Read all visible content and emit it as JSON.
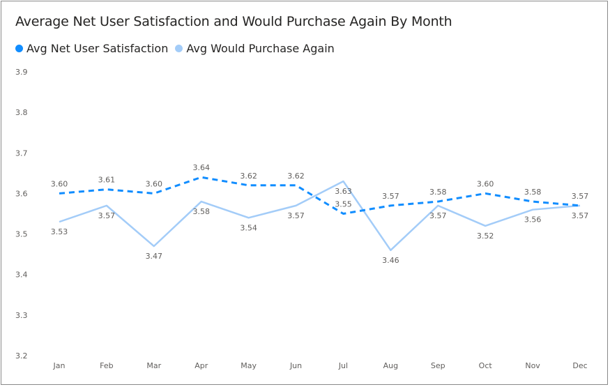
{
  "chart_data": {
    "type": "line",
    "title": "Average Net User Satisfaction and Would Purchase Again By Month",
    "categories": [
      "Jan",
      "Feb",
      "Mar",
      "Apr",
      "May",
      "Jun",
      "Jul",
      "Aug",
      "Sep",
      "Oct",
      "Nov",
      "Dec"
    ],
    "series": [
      {
        "name": "Avg Net User Satisfaction",
        "color": "#118DFF",
        "style": "dashed",
        "values": [
          3.6,
          3.61,
          3.6,
          3.64,
          3.62,
          3.62,
          3.55,
          3.57,
          3.58,
          3.6,
          3.58,
          3.57
        ]
      },
      {
        "name": "Avg Would Purchase Again",
        "color": "#A3CCF8",
        "style": "solid",
        "values": [
          3.53,
          3.57,
          3.47,
          3.58,
          3.54,
          3.57,
          3.63,
          3.46,
          3.57,
          3.52,
          3.56,
          3.57
        ]
      }
    ],
    "ylim": [
      3.2,
      3.9
    ],
    "yticks": [
      "3.2",
      "3.3",
      "3.4",
      "3.5",
      "3.6",
      "3.7",
      "3.8",
      "3.9"
    ],
    "grid": false,
    "legend": "top-left",
    "data_labels": true
  }
}
